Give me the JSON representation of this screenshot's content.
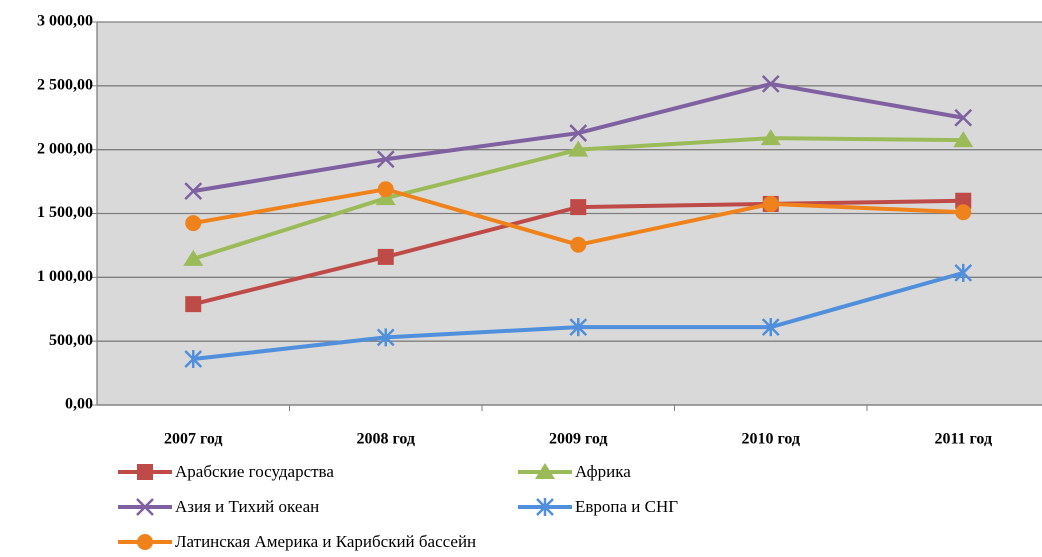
{
  "chart_data": {
    "type": "line",
    "categories": [
      "2007 год",
      "2008 год",
      "2009 год",
      "2010 год",
      "2011 год"
    ],
    "series": [
      {
        "name": "Арабские государства",
        "color": "#be4b48",
        "marker": "square",
        "values": [
          790,
          1160,
          1550,
          1575,
          1600
        ]
      },
      {
        "name": "Африка",
        "color": "#9bbb59",
        "marker": "triangle",
        "values": [
          1145,
          1620,
          2000,
          2090,
          2075
        ]
      },
      {
        "name": "Азия и Тихий океан",
        "color": "#7f60a0",
        "marker": "x",
        "values": [
          1675,
          1925,
          2130,
          2515,
          2250
        ]
      },
      {
        "name": "Европа и СНГ",
        "color": "#4f8fdc",
        "marker": "asterisk",
        "values": [
          360,
          530,
          610,
          610,
          1035
        ]
      },
      {
        "name": "Латинская Америка и Карибский бассейн",
        "color": "#f0821c",
        "marker": "circle",
        "values": [
          1425,
          1690,
          1255,
          1575,
          1510
        ]
      }
    ],
    "ylim": [
      0,
      3000
    ],
    "yticks": [
      {
        "value": 0,
        "label": "0,00"
      },
      {
        "value": 500,
        "label": "500,00"
      },
      {
        "value": 1000,
        "label": "1 000,00"
      },
      {
        "value": 1500,
        "label": "1 500,00"
      },
      {
        "value": 2000,
        "label": "2 000,00"
      },
      {
        "value": 2500,
        "label": "2 500,00"
      },
      {
        "value": 3000,
        "label": "3 000,00"
      }
    ],
    "grid": true
  }
}
